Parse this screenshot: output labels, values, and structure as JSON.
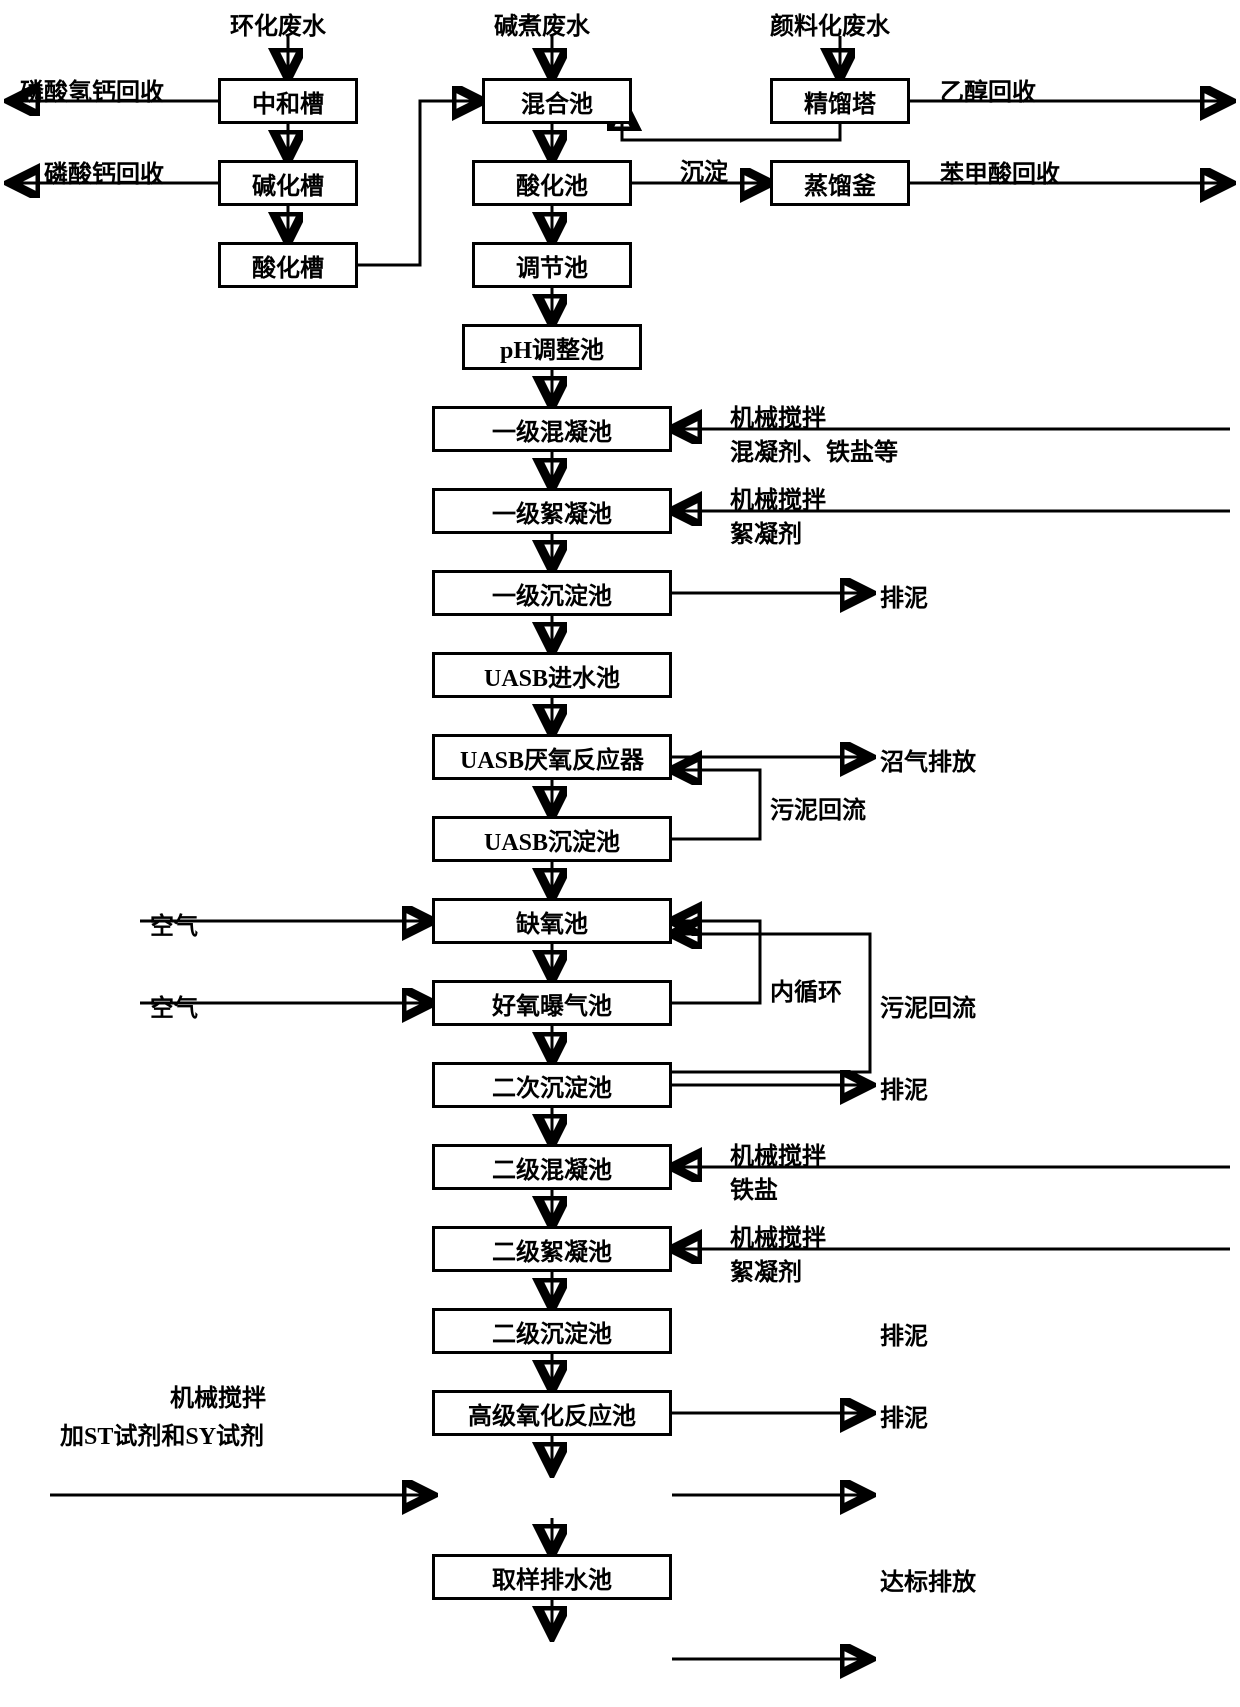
{
  "inputs": {
    "cyclization": "环化废水",
    "alkali_boil": "碱煮废水",
    "pigment": "颜料化废水"
  },
  "left_branch": {
    "neutralize_tank": "中和槽",
    "alkalize_tank": "碱化槽",
    "acidify_tank": "酸化槽",
    "recover_cahpo4": "磷酸氢钙回收",
    "recover_ca3po4": "磷酸钙回收"
  },
  "right_branch": {
    "rectify_tower": "精馏塔",
    "distill_kettle": "蒸馏釜",
    "ethanol_recover": "乙醇回收",
    "benzoic_recover": "苯甲酸回收",
    "precipitate": "沉淀"
  },
  "main": [
    "混合池",
    "酸化池",
    "调节池",
    "pH调整池",
    "一级混凝池",
    "一级絮凝池",
    "一级沉淀池",
    "UASB进水池",
    "UASB厌氧反应器",
    "UASB沉淀池",
    "缺氧池",
    "好氧曝气池",
    "二次沉淀池",
    "二级混凝池",
    "二级絮凝池",
    "二级沉淀池",
    "高级氧化反应池",
    "取样排水池"
  ],
  "side_inputs": {
    "mix1_top": "机械搅拌",
    "mix1_bot": "混凝剂、铁盐等",
    "floc1_top": "机械搅拌",
    "floc1_bot": "絮凝剂",
    "mix2_top": "机械搅拌",
    "mix2_bot": "铁盐",
    "floc2_top": "机械搅拌",
    "floc2_bot": "絮凝剂",
    "air1": "空气",
    "air2": "空气",
    "oxidation_top": "机械搅拌",
    "oxidation_bot": "加ST试剂和SY试剂"
  },
  "side_outputs": {
    "sludge1": "排泥",
    "biogas": "沼气排放",
    "sludge_return1": "污泥回流",
    "inner_loop": "内循环",
    "sludge_return2": "污泥回流",
    "sludge2": "排泥",
    "sludge3": "排泥",
    "sludge4": "排泥",
    "discharge": "达标排放"
  },
  "style": {
    "node_border": "#000000",
    "bg": "#ffffff",
    "font": "SimSun"
  }
}
